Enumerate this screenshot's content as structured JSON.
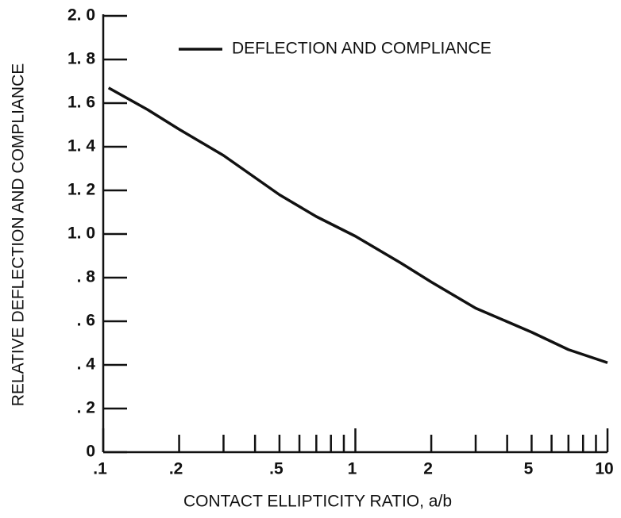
{
  "chart_data": {
    "type": "line",
    "xlabel": "CONTACT ELLIPTICITY RATIO,  a/b",
    "ylabel": "RELATIVE DEFLECTION AND COMPLIANCE",
    "x": [
      0.105,
      0.15,
      0.2,
      0.3,
      0.5,
      0.7,
      1,
      1.5,
      2,
      3,
      5,
      7,
      10
    ],
    "series": [
      {
        "name": "DEFLECTION AND COMPLIANCE",
        "color": "#111111",
        "values": [
          1.67,
          1.57,
          1.48,
          1.36,
          1.18,
          1.08,
          0.99,
          0.87,
          0.78,
          0.66,
          0.55,
          0.47,
          0.41
        ]
      }
    ],
    "xscale": "log",
    "xlim": [
      0.1,
      10
    ],
    "xticks": [
      {
        "value": 0.1,
        "label": ".1"
      },
      {
        "value": 0.2,
        "label": ".2"
      },
      {
        "value": 0.5,
        "label": ".5"
      },
      1,
      2,
      5,
      10
    ],
    "xminorticks": [
      0.3,
      0.4,
      0.6,
      0.7,
      0.8,
      0.9,
      3,
      4,
      6,
      7,
      8,
      9
    ],
    "ylim": [
      0,
      2.0
    ],
    "yticks": [
      0,
      {
        "value": 0.2,
        "label": ". 2"
      },
      {
        "value": 0.4,
        "label": ". 4"
      },
      {
        "value": 0.6,
        "label": ". 6"
      },
      {
        "value": 0.8,
        "label": ". 8"
      },
      {
        "value": 1.0,
        "label": "1. 0"
      },
      {
        "value": 1.2,
        "label": "1. 2"
      },
      {
        "value": 1.4,
        "label": "1. 4"
      },
      {
        "value": 1.6,
        "label": "1. 6"
      },
      {
        "value": 1.8,
        "label": "1. 8"
      },
      {
        "value": 2.0,
        "label": "2. 0"
      }
    ],
    "legend": "upper right"
  }
}
